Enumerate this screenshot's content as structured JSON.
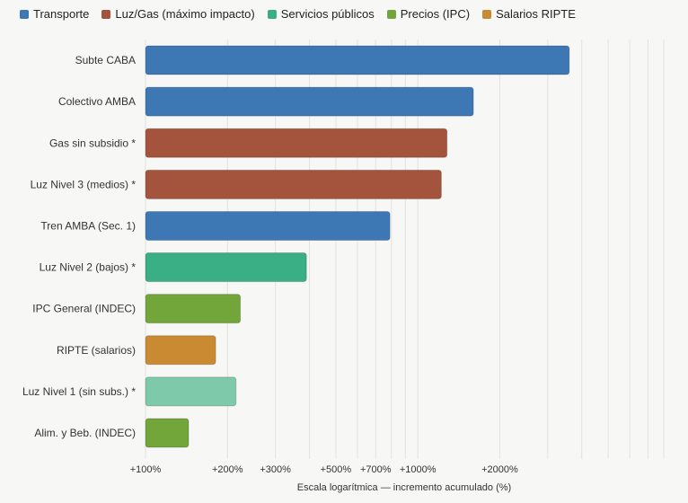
{
  "legend": [
    {
      "label": "Transporte",
      "color": "#3d78b5"
    },
    {
      "label": "Luz/Gas (máximo impacto)",
      "color": "#a4533d"
    },
    {
      "label": "Servicios públicos",
      "color": "#3aae84"
    },
    {
      "label": "Precios (IPC)",
      "color": "#72a53a"
    },
    {
      "label": "Salarios RIPTE",
      "color": "#c98a32"
    }
  ],
  "chart_data": {
    "type": "bar",
    "orientation": "horizontal",
    "scale": "log",
    "categories": [
      "Subte CABA",
      "Colectivo AMBA",
      "Gas sin subsidio *",
      "Luz Nivel 3 (medios) *",
      "Tren AMBA (Sec. 1)",
      "Luz Nivel 2 (bajos) *",
      "IPC General (INDEC)",
      "RIPTE (salarios)",
      "Luz Nivel 1 (sin subs.) *",
      "Alim. y Beb. (INDEC)"
    ],
    "values": [
      3600,
      1600,
      1280,
      1220,
      790,
      390,
      223,
      181,
      215,
      144
    ],
    "groups": [
      "Transporte",
      "Transporte",
      "Luz/Gas (máximo impacto)",
      "Luz/Gas (máximo impacto)",
      "Transporte",
      "Servicios públicos",
      "Precios (IPC)",
      "Salarios RIPTE",
      "Servicios públicos",
      "Precios (IPC)"
    ],
    "bar_colors": [
      "#3d78b5",
      "#3d78b5",
      "#a4533d",
      "#a4533d",
      "#3d78b5",
      "#3aae84",
      "#72a53a",
      "#c98a32",
      "#7ec9aa",
      "#72a53a"
    ],
    "xlim": [
      100,
      8000
    ],
    "xticks": [
      {
        "value": 100,
        "label": "+100%"
      },
      {
        "value": 200,
        "label": "+200%"
      },
      {
        "value": 300,
        "label": "+300%"
      },
      {
        "value": 500,
        "label": "+500%"
      },
      {
        "value": 700,
        "label": "+700%"
      },
      {
        "value": 1000,
        "label": "+1000%"
      },
      {
        "value": 2000,
        "label": "+2000%"
      }
    ],
    "minor_gridlines": [
      400,
      600,
      800,
      900,
      3000,
      4000,
      5000,
      6000,
      7000,
      8000
    ],
    "xlabel": "Escala logarítmica — incremento acumulado (%)",
    "grid": true,
    "legend_position": "top-left"
  }
}
